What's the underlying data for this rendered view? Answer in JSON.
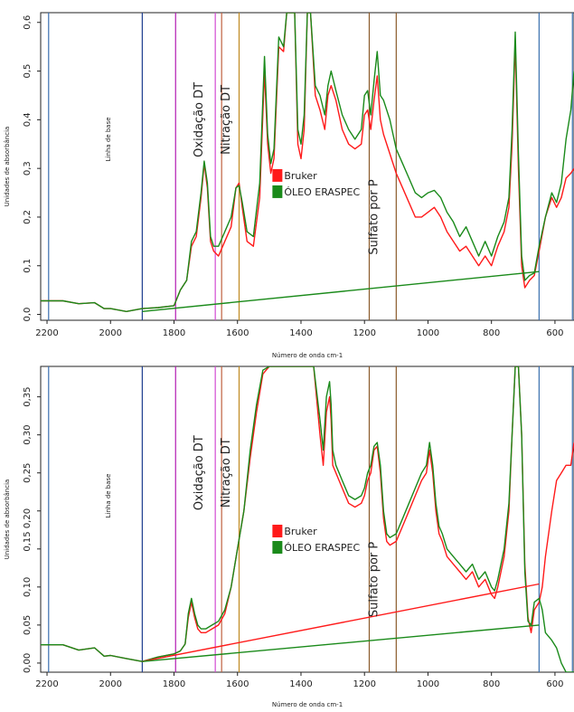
{
  "chart_data": [
    {
      "type": "line",
      "xlabel": "Número de onda cm-1",
      "ylabel": "Unidades de absorbância",
      "xlim": [
        2220,
        540
      ],
      "ylim": [
        -0.012,
        0.62
      ],
      "x_ticks": [
        2200,
        2000,
        1800,
        1600,
        1400,
        1200,
        1000,
        800,
        600
      ],
      "y_ticks": [
        0.0,
        0.1,
        0.2,
        0.3,
        0.4,
        0.5,
        0.6
      ],
      "y_tick_labels": [
        "0,0",
        "0,1",
        "0,2",
        "0,3",
        "0,4",
        "0,5",
        "0,6"
      ],
      "annotations": [
        {
          "text": "Linha de base",
          "x": 2000,
          "y": 0.36
        },
        {
          "text": "Oxidação DT",
          "x": 1710,
          "y": 0.4
        },
        {
          "text": "Nitração DT",
          "x": 1625,
          "y": 0.4
        },
        {
          "text": "Sulfato por P",
          "x": 1160,
          "y": 0.2
        }
      ],
      "vlines": [
        {
          "x": 2195,
          "color": "#3a6fb0"
        },
        {
          "x": 1900,
          "color": "#1f3f8f"
        },
        {
          "x": 1795,
          "color": "#b31bb3"
        },
        {
          "x": 1670,
          "color": "#d24ad2"
        },
        {
          "x": 1650,
          "color": "#c06040"
        },
        {
          "x": 1595,
          "color": "#c08a20"
        },
        {
          "x": 1185,
          "color": "#8a5a2a"
        },
        {
          "x": 1100,
          "color": "#8a5a2a"
        },
        {
          "x": 650,
          "color": "#3a6fb0"
        },
        {
          "x": 545,
          "color": "#3a6fb0"
        }
      ],
      "series": [
        {
          "name": "Bruker",
          "color": "#ff1a1a",
          "x": [
            2220,
            2150,
            2100,
            2050,
            2020,
            2000,
            1950,
            1900,
            1850,
            1800,
            1780,
            1760,
            1745,
            1730,
            1715,
            1705,
            1695,
            1685,
            1675,
            1660,
            1640,
            1620,
            1605,
            1595,
            1585,
            1570,
            1550,
            1530,
            1515,
            1505,
            1495,
            1485,
            1470,
            1455,
            1445,
            1430,
            1420,
            1410,
            1400,
            1390,
            1380,
            1370,
            1355,
            1340,
            1325,
            1315,
            1305,
            1290,
            1270,
            1250,
            1230,
            1210,
            1200,
            1190,
            1180,
            1170,
            1160,
            1150,
            1140,
            1120,
            1100,
            1080,
            1060,
            1040,
            1020,
            1000,
            980,
            960,
            940,
            920,
            900,
            880,
            860,
            840,
            820,
            800,
            780,
            760,
            745,
            735,
            725,
            715,
            705,
            695,
            680,
            665,
            650,
            630,
            610,
            595,
            580,
            565,
            550,
            540
          ],
          "y": [
            0.028,
            0.028,
            0.022,
            0.024,
            0.012,
            0.012,
            0.006,
            0.012,
            0.014,
            0.018,
            0.05,
            0.07,
            0.14,
            0.16,
            0.24,
            0.31,
            0.26,
            0.15,
            0.13,
            0.12,
            0.15,
            0.18,
            0.26,
            0.27,
            0.22,
            0.15,
            0.14,
            0.24,
            0.5,
            0.35,
            0.29,
            0.32,
            0.55,
            0.54,
            0.62,
            0.62,
            0.62,
            0.35,
            0.32,
            0.38,
            0.62,
            0.62,
            0.45,
            0.42,
            0.38,
            0.45,
            0.47,
            0.44,
            0.38,
            0.35,
            0.34,
            0.35,
            0.41,
            0.42,
            0.38,
            0.44,
            0.49,
            0.4,
            0.37,
            0.33,
            0.29,
            0.26,
            0.23,
            0.2,
            0.2,
            0.21,
            0.22,
            0.2,
            0.17,
            0.15,
            0.13,
            0.14,
            0.12,
            0.1,
            0.12,
            0.1,
            0.14,
            0.17,
            0.22,
            0.35,
            0.56,
            0.3,
            0.1,
            0.055,
            0.07,
            0.08,
            0.13,
            0.2,
            0.24,
            0.22,
            0.24,
            0.28,
            0.29,
            0.3
          ]
        },
        {
          "name": "ÓLEO ERASPEC",
          "color": "#1a8a1a",
          "x": [
            2220,
            2150,
            2100,
            2050,
            2020,
            2000,
            1950,
            1900,
            1850,
            1800,
            1780,
            1760,
            1745,
            1730,
            1715,
            1705,
            1695,
            1685,
            1675,
            1660,
            1640,
            1620,
            1605,
            1595,
            1585,
            1570,
            1550,
            1530,
            1515,
            1505,
            1495,
            1485,
            1470,
            1455,
            1445,
            1430,
            1420,
            1410,
            1400,
            1390,
            1380,
            1370,
            1355,
            1340,
            1325,
            1315,
            1305,
            1290,
            1270,
            1250,
            1230,
            1210,
            1200,
            1190,
            1180,
            1170,
            1160,
            1150,
            1140,
            1120,
            1100,
            1080,
            1060,
            1040,
            1020,
            1000,
            980,
            960,
            940,
            920,
            900,
            880,
            860,
            840,
            820,
            800,
            780,
            760,
            745,
            735,
            725,
            715,
            705,
            695,
            680,
            665,
            650,
            630,
            610,
            595,
            580,
            565,
            550,
            540
          ],
          "y": [
            0.028,
            0.028,
            0.022,
            0.024,
            0.012,
            0.012,
            0.006,
            0.012,
            0.014,
            0.018,
            0.05,
            0.07,
            0.15,
            0.17,
            0.25,
            0.315,
            0.27,
            0.16,
            0.14,
            0.14,
            0.17,
            0.2,
            0.26,
            0.265,
            0.23,
            0.17,
            0.16,
            0.27,
            0.53,
            0.37,
            0.31,
            0.34,
            0.57,
            0.55,
            0.62,
            0.62,
            0.62,
            0.38,
            0.35,
            0.41,
            0.62,
            0.62,
            0.47,
            0.45,
            0.41,
            0.47,
            0.5,
            0.46,
            0.41,
            0.38,
            0.36,
            0.38,
            0.45,
            0.46,
            0.41,
            0.48,
            0.54,
            0.45,
            0.44,
            0.4,
            0.34,
            0.31,
            0.28,
            0.25,
            0.24,
            0.25,
            0.255,
            0.24,
            0.21,
            0.19,
            0.16,
            0.18,
            0.15,
            0.12,
            0.15,
            0.12,
            0.16,
            0.19,
            0.24,
            0.38,
            0.58,
            0.33,
            0.12,
            0.07,
            0.08,
            0.085,
            0.14,
            0.2,
            0.25,
            0.23,
            0.27,
            0.36,
            0.42,
            0.5
          ]
        },
        {
          "name": "",
          "color": "#1a8a1a",
          "x": [
            1900,
            650
          ],
          "y": [
            0.006,
            0.088
          ]
        }
      ],
      "legend": [
        "Bruker",
        "ÓLEO ERASPEC"
      ],
      "legend_position": "center"
    },
    {
      "type": "line",
      "xlabel": "Número de onda cm-1",
      "ylabel": "Unidades de absorbância",
      "xlim": [
        2220,
        540
      ],
      "ylim": [
        -0.012,
        0.39
      ],
      "x_ticks": [
        2200,
        2000,
        1800,
        1600,
        1400,
        1200,
        1000,
        800,
        600
      ],
      "y_ticks": [
        0.0,
        0.05,
        0.1,
        0.15,
        0.2,
        0.25,
        0.3,
        0.35
      ],
      "y_tick_labels": [
        "0,00",
        "0,05",
        "0,10",
        "0,15",
        "0,20",
        "0,25",
        "0,30",
        "0,35"
      ],
      "y_tick_labels_merged": "0,15 0,20",
      "annotations": [
        {
          "text": "Linha de base",
          "x": 2000,
          "y": 0.22
        },
        {
          "text": "Oxidação DT",
          "x": 1710,
          "y": 0.25
        },
        {
          "text": "Nitração DT",
          "x": 1625,
          "y": 0.25
        },
        {
          "text": "Sulfato por P",
          "x": 1160,
          "y": 0.11
        }
      ],
      "vlines": [
        {
          "x": 2195,
          "color": "#3a6fb0"
        },
        {
          "x": 1900,
          "color": "#1f3f8f"
        },
        {
          "x": 1795,
          "color": "#b31bb3"
        },
        {
          "x": 1670,
          "color": "#d24ad2"
        },
        {
          "x": 1650,
          "color": "#c06040"
        },
        {
          "x": 1595,
          "color": "#c08a20"
        },
        {
          "x": 1185,
          "color": "#8a5a2a"
        },
        {
          "x": 1100,
          "color": "#8a5a2a"
        },
        {
          "x": 650,
          "color": "#3a6fb0"
        },
        {
          "x": 545,
          "color": "#3a6fb0"
        }
      ],
      "series": [
        {
          "name": "Bruker",
          "color": "#ff1a1a",
          "x": [
            2220,
            2150,
            2100,
            2050,
            2020,
            2000,
            1950,
            1900,
            1850,
            1800,
            1780,
            1765,
            1755,
            1745,
            1735,
            1725,
            1715,
            1700,
            1680,
            1660,
            1640,
            1620,
            1600,
            1580,
            1560,
            1540,
            1520,
            1500,
            1480,
            1460,
            1440,
            1420,
            1400,
            1380,
            1360,
            1340,
            1330,
            1320,
            1310,
            1305,
            1300,
            1290,
            1280,
            1270,
            1250,
            1230,
            1210,
            1200,
            1190,
            1180,
            1170,
            1160,
            1150,
            1140,
            1130,
            1120,
            1100,
            1080,
            1060,
            1040,
            1020,
            1005,
            995,
            985,
            975,
            965,
            955,
            940,
            920,
            900,
            880,
            860,
            840,
            820,
            800,
            790,
            780,
            760,
            745,
            735,
            725,
            715,
            705,
            695,
            685,
            675,
            665,
            650,
            640,
            630,
            610,
            595,
            580,
            565,
            550,
            540
          ],
          "y": [
            0.024,
            0.024,
            0.017,
            0.02,
            0.009,
            0.01,
            0.006,
            0.002,
            0.008,
            0.012,
            0.016,
            0.025,
            0.06,
            0.08,
            0.06,
            0.045,
            0.04,
            0.04,
            0.045,
            0.05,
            0.065,
            0.1,
            0.15,
            0.2,
            0.27,
            0.33,
            0.38,
            0.39,
            0.39,
            0.39,
            0.39,
            0.39,
            0.39,
            0.39,
            0.39,
            0.3,
            0.26,
            0.33,
            0.35,
            0.32,
            0.26,
            0.25,
            0.24,
            0.23,
            0.21,
            0.205,
            0.21,
            0.22,
            0.24,
            0.25,
            0.28,
            0.285,
            0.25,
            0.19,
            0.16,
            0.155,
            0.16,
            0.18,
            0.2,
            0.22,
            0.24,
            0.25,
            0.28,
            0.25,
            0.2,
            0.17,
            0.16,
            0.14,
            0.13,
            0.12,
            0.11,
            0.12,
            0.1,
            0.11,
            0.09,
            0.085,
            0.1,
            0.14,
            0.2,
            0.3,
            0.39,
            0.39,
            0.3,
            0.13,
            0.06,
            0.04,
            0.07,
            0.08,
            0.1,
            0.14,
            0.2,
            0.24,
            0.25,
            0.26,
            0.26,
            0.29
          ]
        },
        {
          "name": "ÓLEO ERASPEC",
          "color": "#1a8a1a",
          "x": [
            2220,
            2150,
            2100,
            2050,
            2020,
            2000,
            1950,
            1900,
            1850,
            1800,
            1780,
            1765,
            1755,
            1745,
            1735,
            1725,
            1715,
            1700,
            1680,
            1660,
            1640,
            1620,
            1600,
            1580,
            1560,
            1540,
            1520,
            1500,
            1480,
            1460,
            1440,
            1420,
            1400,
            1380,
            1360,
            1340,
            1330,
            1320,
            1310,
            1305,
            1300,
            1290,
            1280,
            1270,
            1250,
            1230,
            1210,
            1200,
            1190,
            1180,
            1170,
            1160,
            1150,
            1140,
            1130,
            1120,
            1100,
            1080,
            1060,
            1040,
            1020,
            1005,
            995,
            985,
            975,
            965,
            955,
            940,
            920,
            900,
            880,
            860,
            840,
            820,
            800,
            790,
            780,
            760,
            745,
            735,
            725,
            715,
            705,
            695,
            685,
            675,
            665,
            650,
            640,
            630,
            610,
            595,
            580,
            565,
            550,
            540
          ],
          "y": [
            0.024,
            0.024,
            0.017,
            0.02,
            0.009,
            0.01,
            0.006,
            0.002,
            0.008,
            0.012,
            0.016,
            0.025,
            0.065,
            0.085,
            0.065,
            0.05,
            0.045,
            0.045,
            0.05,
            0.055,
            0.07,
            0.1,
            0.15,
            0.2,
            0.28,
            0.34,
            0.385,
            0.39,
            0.39,
            0.39,
            0.39,
            0.39,
            0.39,
            0.39,
            0.39,
            0.32,
            0.28,
            0.35,
            0.37,
            0.34,
            0.28,
            0.26,
            0.25,
            0.24,
            0.22,
            0.215,
            0.22,
            0.23,
            0.25,
            0.26,
            0.285,
            0.29,
            0.26,
            0.2,
            0.17,
            0.165,
            0.17,
            0.19,
            0.21,
            0.23,
            0.25,
            0.26,
            0.29,
            0.26,
            0.21,
            0.18,
            0.17,
            0.15,
            0.14,
            0.13,
            0.12,
            0.13,
            0.11,
            0.12,
            0.1,
            0.095,
            0.11,
            0.15,
            0.21,
            0.3,
            0.39,
            0.39,
            0.3,
            0.12,
            0.055,
            0.05,
            0.08,
            0.085,
            0.07,
            0.04,
            0.03,
            0.02,
            0.0,
            -0.012,
            -0.012,
            -0.012
          ]
        },
        {
          "name": "",
          "color": "#ff1a1a",
          "x": [
            1900,
            650
          ],
          "y": [
            0.002,
            0.104
          ]
        },
        {
          "name": "",
          "color": "#1a8a1a",
          "x": [
            1900,
            650
          ],
          "y": [
            0.002,
            0.05
          ]
        }
      ],
      "legend": [
        "Bruker",
        "ÓLEO ERASPEC"
      ],
      "legend_position": "center"
    }
  ]
}
